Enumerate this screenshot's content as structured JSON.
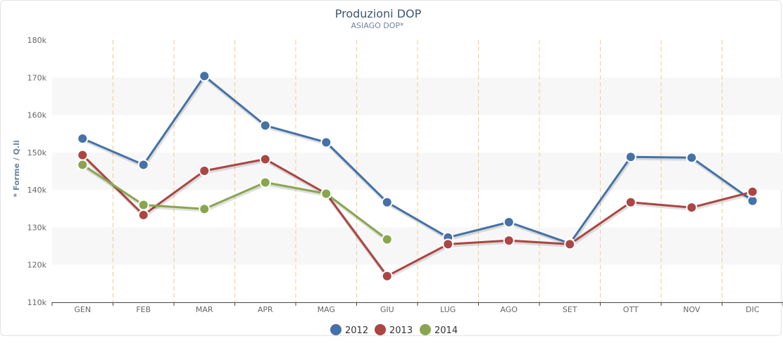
{
  "chart_data": {
    "type": "line",
    "title": "Produzioni DOP",
    "subtitle": "ASIAGO DOP*",
    "xlabel": "",
    "ylabel": "* Forme / Q.li",
    "ylim": [
      110000,
      180000
    ],
    "ytick_step": 10000,
    "yticks": [
      "110k",
      "120k",
      "130k",
      "140k",
      "150k",
      "160k",
      "170k",
      "180k"
    ],
    "categories": [
      "GEN",
      "FEB",
      "MAR",
      "APR",
      "MAG",
      "GIU",
      "LUG",
      "AGO",
      "SET",
      "OTT",
      "NOV",
      "DIC"
    ],
    "legend_position": "bottom-center",
    "alternating_bands": true,
    "vertical_grid": "dashed-orange",
    "colors": {
      "band": "#f7f7f7",
      "grid": "#f5c98a",
      "axis": "#444444",
      "tick_text": "#666666",
      "title": "#3e576f",
      "subtitle": "#6d869f",
      "ylabel": "#6d869f"
    },
    "series": [
      {
        "name": "2012",
        "color": "#4572a7",
        "values": [
          153700,
          146700,
          170400,
          157200,
          152700,
          136700,
          127300,
          131400,
          125700,
          148800,
          148600,
          137100
        ]
      },
      {
        "name": "2013",
        "color": "#aa4643",
        "values": [
          149300,
          133300,
          145100,
          148200,
          139000,
          117000,
          125500,
          126500,
          125500,
          136700,
          135300,
          139500
        ]
      },
      {
        "name": "2014",
        "color": "#89a54e",
        "values": [
          146700,
          136000,
          134900,
          142000,
          139000,
          126800,
          null,
          null,
          null,
          null,
          null,
          null
        ]
      }
    ]
  }
}
